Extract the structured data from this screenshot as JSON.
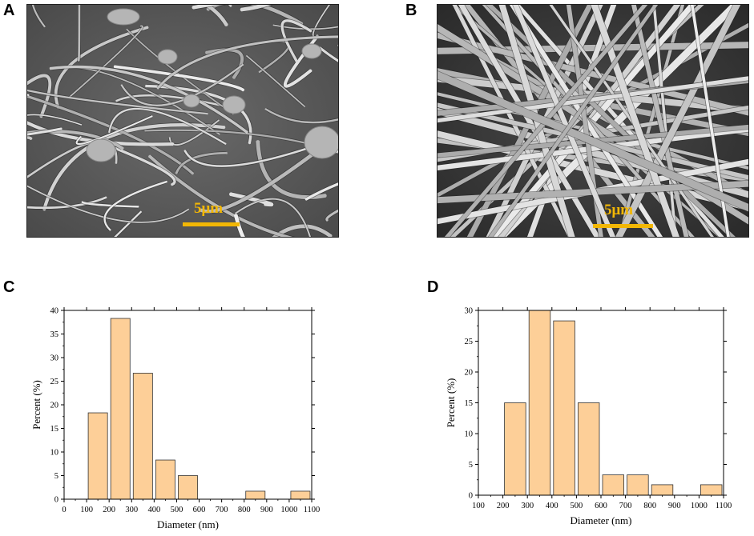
{
  "panels": {
    "a": {
      "label": "A",
      "scale_text": "5μm"
    },
    "b": {
      "label": "B",
      "scale_text": "5μm"
    },
    "c": {
      "label": "C"
    },
    "d": {
      "label": "D"
    }
  },
  "colors": {
    "bar_fill": "#fdcf98",
    "bar_stroke": "#333333",
    "scalebar": "#f2b705",
    "sem_bg": "#3a3a3a",
    "fiber": "#d4d4d4"
  },
  "chart_data": [
    {
      "type": "bar",
      "panel": "C",
      "title": "",
      "xlabel": "Diameter (nm)",
      "ylabel": "Percent (%)",
      "xlim": [
        0,
        1100
      ],
      "ylim": [
        0,
        40
      ],
      "xticks": [
        0,
        100,
        200,
        300,
        400,
        500,
        600,
        700,
        800,
        900,
        1000,
        1100
      ],
      "yticks": [
        0,
        5,
        10,
        15,
        20,
        25,
        30,
        35,
        40
      ],
      "bin_edges": [
        [
          100,
          200
        ],
        [
          200,
          300
        ],
        [
          300,
          400
        ],
        [
          400,
          500
        ],
        [
          500,
          600
        ],
        [
          800,
          900
        ],
        [
          1000,
          1100
        ]
      ],
      "values": [
        18.3,
        38.3,
        26.7,
        8.3,
        5.0,
        1.7,
        1.7
      ]
    },
    {
      "type": "bar",
      "panel": "D",
      "title": "",
      "xlabel": "Diameter (nm)",
      "ylabel": "Percent (%)",
      "xlim": [
        100,
        1100
      ],
      "ylim": [
        0,
        30
      ],
      "xticks": [
        100,
        200,
        300,
        400,
        500,
        600,
        700,
        800,
        900,
        1000,
        1100
      ],
      "yticks": [
        0,
        5,
        10,
        15,
        20,
        25,
        30
      ],
      "bin_edges": [
        [
          200,
          300
        ],
        [
          300,
          400
        ],
        [
          400,
          500
        ],
        [
          500,
          600
        ],
        [
          600,
          700
        ],
        [
          700,
          800
        ],
        [
          800,
          900
        ],
        [
          1000,
          1100
        ]
      ],
      "values": [
        15.0,
        30.0,
        28.3,
        15.0,
        3.3,
        3.3,
        1.7,
        1.7
      ]
    }
  ]
}
